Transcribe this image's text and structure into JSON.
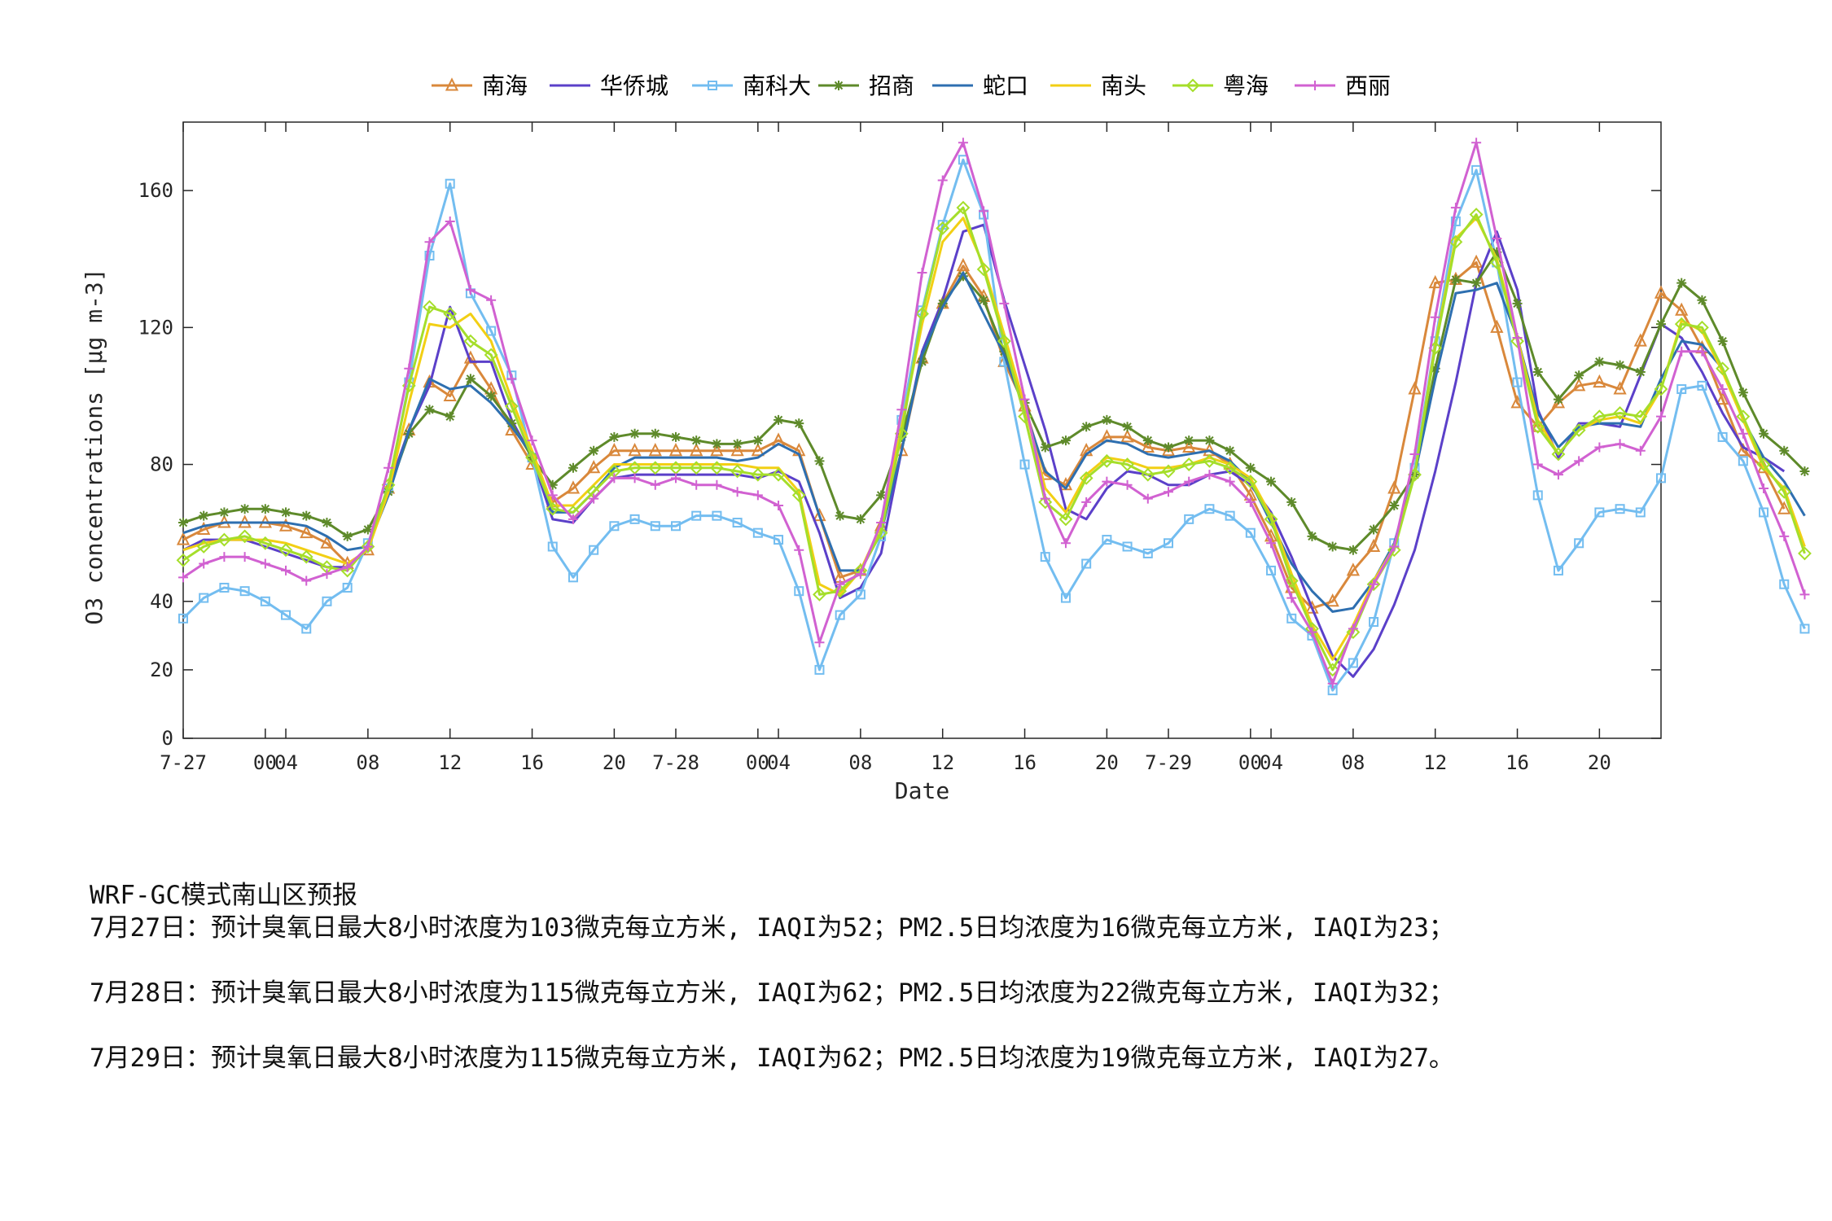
{
  "chart_data": {
    "type": "line",
    "title": "",
    "xlabel": "Date",
    "ylabel": "O3 concentrations [μg m-3]",
    "ylim": [
      0,
      180
    ],
    "yticks": [
      0,
      20,
      40,
      80,
      120,
      160
    ],
    "x_range": [
      0,
      72
    ],
    "xticks": [
      {
        "x": 0,
        "label": "7-27"
      },
      {
        "x": 4,
        "label": "00"
      },
      {
        "x": 5,
        "label": "04"
      },
      {
        "x": 9,
        "label": "08"
      },
      {
        "x": 13,
        "label": "12"
      },
      {
        "x": 17,
        "label": "16"
      },
      {
        "x": 21,
        "label": "20"
      },
      {
        "x": 24,
        "label": "7-28"
      },
      {
        "x": 28,
        "label": "00"
      },
      {
        "x": 29,
        "label": "04"
      },
      {
        "x": 33,
        "label": "08"
      },
      {
        "x": 37,
        "label": "12"
      },
      {
        "x": 41,
        "label": "16"
      },
      {
        "x": 45,
        "label": "20"
      },
      {
        "x": 48,
        "label": "7-29"
      },
      {
        "x": 52,
        "label": "00"
      },
      {
        "x": 53,
        "label": "04"
      },
      {
        "x": 57,
        "label": "08"
      },
      {
        "x": 61,
        "label": "12"
      },
      {
        "x": 65,
        "label": "16"
      },
      {
        "x": 69,
        "label": "20"
      }
    ],
    "grid": false,
    "legend_position": "top-center",
    "series": [
      {
        "name": "南海",
        "color": "#D9883B",
        "marker": "triangle",
        "values": [
          58,
          61,
          63,
          63,
          63,
          62,
          60,
          57,
          51,
          55,
          73,
          90,
          104,
          100,
          111,
          102,
          90,
          80,
          69,
          73,
          79,
          84,
          84,
          84,
          84,
          84,
          84,
          84,
          84,
          87,
          84,
          65,
          47,
          49,
          62,
          84,
          111,
          127,
          138,
          129,
          110,
          97,
          77,
          74,
          84,
          88,
          88,
          85,
          84,
          85,
          84,
          80,
          71,
          59,
          44,
          38,
          40,
          49,
          56,
          73,
          102,
          133,
          134,
          139,
          120,
          98,
          91,
          98,
          103,
          104,
          102,
          116,
          130,
          125,
          114,
          99,
          84,
          79,
          67
        ]
      },
      {
        "name": "华侨城",
        "color": "#5B40C9",
        "marker": "none",
        "values": [
          55,
          58,
          58,
          58,
          56,
          54,
          52,
          50,
          50,
          55,
          73,
          90,
          103,
          126,
          110,
          110,
          93,
          82,
          64,
          63,
          70,
          76,
          77,
          77,
          77,
          77,
          77,
          77,
          76,
          78,
          75,
          60,
          41,
          44,
          54,
          84,
          113,
          128,
          148,
          150,
          128,
          109,
          90,
          67,
          64,
          73,
          78,
          77,
          74,
          74,
          77,
          78,
          74,
          66,
          53,
          38,
          24,
          18,
          26,
          39,
          55,
          78,
          104,
          133,
          148,
          131,
          96,
          82,
          92,
          92,
          91,
          106,
          121,
          117,
          107,
          95,
          85,
          82,
          78
        ]
      },
      {
        "name": "南科大",
        "color": "#73BDF0",
        "marker": "square",
        "values": [
          35,
          41,
          44,
          43,
          40,
          36,
          32,
          40,
          44,
          57,
          73,
          104,
          141,
          162,
          130,
          119,
          106,
          82,
          56,
          47,
          55,
          62,
          64,
          62,
          62,
          65,
          65,
          63,
          60,
          58,
          43,
          20,
          36,
          42,
          59,
          93,
          125,
          150,
          169,
          153,
          110,
          80,
          53,
          41,
          51,
          58,
          56,
          54,
          57,
          64,
          67,
          65,
          60,
          49,
          35,
          30,
          14,
          22,
          34,
          57,
          79,
          116,
          151,
          166,
          139,
          104,
          71,
          49,
          57,
          66,
          67,
          66,
          76,
          102,
          103,
          88,
          81,
          66,
          45,
          32
        ]
      },
      {
        "name": "招商",
        "color": "#5E8A2A",
        "marker": "star",
        "values": [
          63,
          65,
          66,
          67,
          67,
          66,
          65,
          63,
          59,
          61,
          72,
          89,
          96,
          94,
          105,
          100,
          92,
          82,
          74,
          79,
          84,
          88,
          89,
          89,
          88,
          87,
          86,
          86,
          87,
          93,
          92,
          81,
          65,
          64,
          71,
          88,
          110,
          127,
          135,
          128,
          113,
          98,
          85,
          87,
          91,
          93,
          91,
          87,
          85,
          87,
          87,
          84,
          79,
          75,
          69,
          59,
          56,
          55,
          61,
          68,
          77,
          108,
          134,
          133,
          142,
          127,
          107,
          99,
          106,
          110,
          109,
          107,
          121,
          133,
          128,
          116,
          101,
          89,
          84,
          78
        ]
      },
      {
        "name": "蛇口",
        "color": "#2E6FB0",
        "marker": "none",
        "values": [
          60,
          62,
          63,
          63,
          63,
          63,
          62,
          59,
          55,
          56,
          71,
          90,
          105,
          102,
          103,
          98,
          91,
          83,
          66,
          66,
          72,
          79,
          82,
          82,
          82,
          82,
          82,
          81,
          82,
          86,
          83,
          65,
          49,
          49,
          60,
          84,
          112,
          126,
          136,
          124,
          112,
          96,
          78,
          73,
          83,
          87,
          86,
          83,
          82,
          83,
          84,
          81,
          75,
          63,
          51,
          43,
          37,
          38,
          46,
          57,
          77,
          105,
          130,
          131,
          133,
          117,
          95,
          85,
          91,
          92,
          92,
          91,
          105,
          116,
          115,
          108,
          93,
          82,
          75,
          65
        ]
      },
      {
        "name": "南头",
        "color": "#F2CF14",
        "marker": "none",
        "values": [
          55,
          57,
          58,
          58,
          58,
          57,
          55,
          53,
          51,
          55,
          72,
          98,
          121,
          120,
          124,
          116,
          99,
          84,
          68,
          68,
          74,
          80,
          80,
          80,
          80,
          80,
          80,
          80,
          79,
          79,
          72,
          45,
          42,
          49,
          62,
          91,
          121,
          145,
          152,
          138,
          118,
          97,
          73,
          66,
          77,
          82,
          81,
          79,
          79,
          80,
          82,
          80,
          76,
          65,
          48,
          33,
          23,
          33,
          46,
          56,
          77,
          115,
          146,
          152,
          140,
          117,
          93,
          83,
          90,
          93,
          94,
          92,
          102,
          122,
          119,
          107,
          93,
          79,
          73,
          56
        ]
      },
      {
        "name": "粤海",
        "color": "#A5DE2A",
        "marker": "diamond",
        "values": [
          52,
          56,
          58,
          59,
          57,
          55,
          53,
          50,
          49,
          56,
          74,
          103,
          126,
          124,
          116,
          112,
          97,
          82,
          67,
          66,
          72,
          78,
          79,
          79,
          79,
          79,
          79,
          78,
          77,
          77,
          71,
          42,
          43,
          49,
          60,
          89,
          124,
          149,
          155,
          137,
          116,
          94,
          69,
          64,
          76,
          81,
          80,
          77,
          78,
          80,
          81,
          79,
          75,
          64,
          46,
          32,
          20,
          31,
          45,
          55,
          77,
          114,
          145,
          153,
          139,
          116,
          91,
          83,
          90,
          94,
          95,
          94,
          102,
          121,
          120,
          108,
          94,
          80,
          72,
          54
        ]
      },
      {
        "name": "西丽",
        "color": "#D161D1",
        "marker": "plus",
        "values": [
          47,
          51,
          53,
          53,
          51,
          49,
          46,
          48,
          50,
          56,
          79,
          108,
          145,
          151,
          131,
          128,
          105,
          87,
          71,
          64,
          70,
          76,
          76,
          74,
          76,
          74,
          74,
          72,
          71,
          68,
          55,
          28,
          45,
          48,
          63,
          96,
          136,
          163,
          174,
          154,
          127,
          99,
          70,
          57,
          69,
          75,
          74,
          70,
          72,
          75,
          77,
          75,
          69,
          57,
          41,
          31,
          16,
          32,
          45,
          56,
          83,
          123,
          155,
          174,
          146,
          117,
          80,
          77,
          81,
          85,
          86,
          84,
          94,
          113,
          113,
          102,
          89,
          73,
          59,
          42
        ]
      }
    ]
  },
  "notes": {
    "title": "WRF-GC模式南山区预报",
    "lines": [
      "7月27日：预计臭氧日最大8小时浓度为103微克每立方米, IAQI为52；PM2.5日均浓度为16微克每立方米, IAQI为23；",
      "7月28日：预计臭氧日最大8小时浓度为115微克每立方米, IAQI为62；PM2.5日均浓度为22微克每立方米, IAQI为32；",
      "7月29日：预计臭氧日最大8小时浓度为115微克每立方米, IAQI为62；PM2.5日均浓度为19微克每立方米, IAQI为27。"
    ]
  }
}
